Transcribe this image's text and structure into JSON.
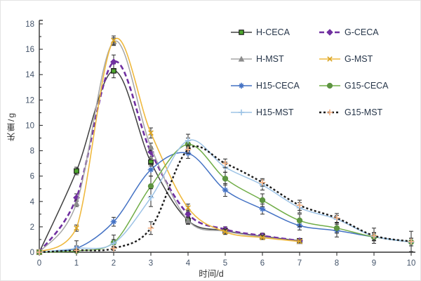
{
  "chart_data": {
    "type": "line",
    "title": "",
    "xlabel": "时间/d",
    "ylabel": "失重/g",
    "xlim": [
      0,
      10
    ],
    "ylim": [
      0,
      18
    ],
    "x_ticks": [
      0,
      1,
      2,
      3,
      4,
      5,
      6,
      7,
      8,
      9,
      10
    ],
    "y_ticks": [
      0,
      2,
      4,
      6,
      8,
      10,
      12,
      14,
      16,
      18
    ],
    "grid": false,
    "legend_position": "inside-top-right",
    "x": [
      0,
      1,
      2,
      3,
      4,
      5,
      6,
      7,
      8,
      9,
      10
    ],
    "series": [
      {
        "name": "H-CECA",
        "color": "#404040",
        "dash": "solid",
        "width": 1.5,
        "marker": "square",
        "marker_color": "#4EA72E",
        "marker_edge": "#111111",
        "values": [
          0,
          6.4,
          14.3,
          7.1,
          2.5,
          1.7,
          1.25,
          0.9
        ],
        "err": [
          0,
          0.3,
          0.55,
          0.3,
          0.3,
          0.2,
          0.2,
          0.15
        ]
      },
      {
        "name": "G-CECA",
        "color": "#7030A0",
        "dash": "7,4",
        "width": 2.6,
        "marker": "diamond",
        "marker_color": "#7030A0",
        "marker_edge": "#7030A0",
        "values": [
          0,
          4.3,
          15.0,
          7.9,
          3.0,
          1.8,
          1.3,
          0.9
        ],
        "err": [
          0,
          0.3,
          0.55,
          0.4,
          0.3,
          0.2,
          0.2,
          0.15
        ]
      },
      {
        "name": "H-MST",
        "color": "#A6A6A6",
        "dash": "solid",
        "width": 1.5,
        "marker": "triangle",
        "marker_color": "#8C8C8C",
        "marker_edge": "#8C8C8C",
        "values": [
          0,
          3.85,
          16.6,
          8.3,
          2.5,
          1.65,
          1.2,
          0.85
        ],
        "err": [
          0,
          0.25,
          0.3,
          0.3,
          0.25,
          0.2,
          0.15,
          0.1
        ]
      },
      {
        "name": "G-MST",
        "color": "#EFB93F",
        "dash": "solid",
        "width": 1.6,
        "marker": "x",
        "marker_color": "#D9A321",
        "marker_edge": "#D9A321",
        "values": [
          0,
          1.9,
          16.7,
          9.4,
          3.5,
          1.6,
          1.15,
          0.85
        ],
        "err": [
          0,
          0.25,
          0.35,
          0.4,
          0.3,
          0.2,
          0.15,
          0.1
        ]
      },
      {
        "name": "H15-CECA",
        "color": "#4472C4",
        "dash": "solid",
        "width": 1.5,
        "marker": "asterisk",
        "marker_color": "#4472C4",
        "marker_edge": "#4472C4",
        "values": [
          0,
          0.3,
          2.4,
          6.5,
          7.8,
          4.9,
          3.4,
          2.1,
          1.7,
          1.2,
          0.8
        ],
        "err": [
          0,
          0.2,
          0.35,
          0.5,
          0.4,
          0.5,
          0.4,
          0.35,
          0.5,
          0.3,
          0.3
        ]
      },
      {
        "name": "G15-CECA",
        "color": "#70AD47",
        "dash": "solid",
        "width": 1.5,
        "marker": "circle",
        "marker_color": "#5D9441",
        "marker_edge": "#5D9441",
        "values": [
          0,
          0.1,
          0.75,
          5.2,
          8.5,
          5.8,
          4.1,
          2.5,
          1.9,
          1.2,
          0.8
        ],
        "err": [
          0,
          0.1,
          0.6,
          0.8,
          0.5,
          0.5,
          0.5,
          0.5,
          0.4,
          0.3,
          0.3
        ]
      },
      {
        "name": "H15-MST",
        "color": "#9DC3E6",
        "dash": "solid",
        "width": 1.5,
        "marker": "plus",
        "marker_color": "#9DC3E6",
        "marker_edge": "#9DC3E6",
        "values": [
          0,
          0.3,
          0.7,
          4.3,
          8.8,
          6.7,
          5.3,
          3.5,
          2.6,
          1.25,
          0.8
        ],
        "err": [
          0,
          0.6,
          0.3,
          0.7,
          0.5,
          0.4,
          0.4,
          0.4,
          0.3,
          0.3,
          0.3
        ]
      },
      {
        "name": "G15-MST",
        "color": "#1A1A1A",
        "dash": "3,3",
        "width": 2.4,
        "marker": "plus",
        "marker_color": "#F4B183",
        "marker_edge": "#F4B183",
        "values": [
          0,
          0.15,
          0.3,
          1.9,
          8.1,
          7.0,
          5.5,
          3.7,
          2.7,
          1.3,
          0.85
        ],
        "err": [
          0,
          0.1,
          0.15,
          0.5,
          0.3,
          0.35,
          0.3,
          0.4,
          0.35,
          0.6,
          0.8
        ]
      }
    ]
  }
}
